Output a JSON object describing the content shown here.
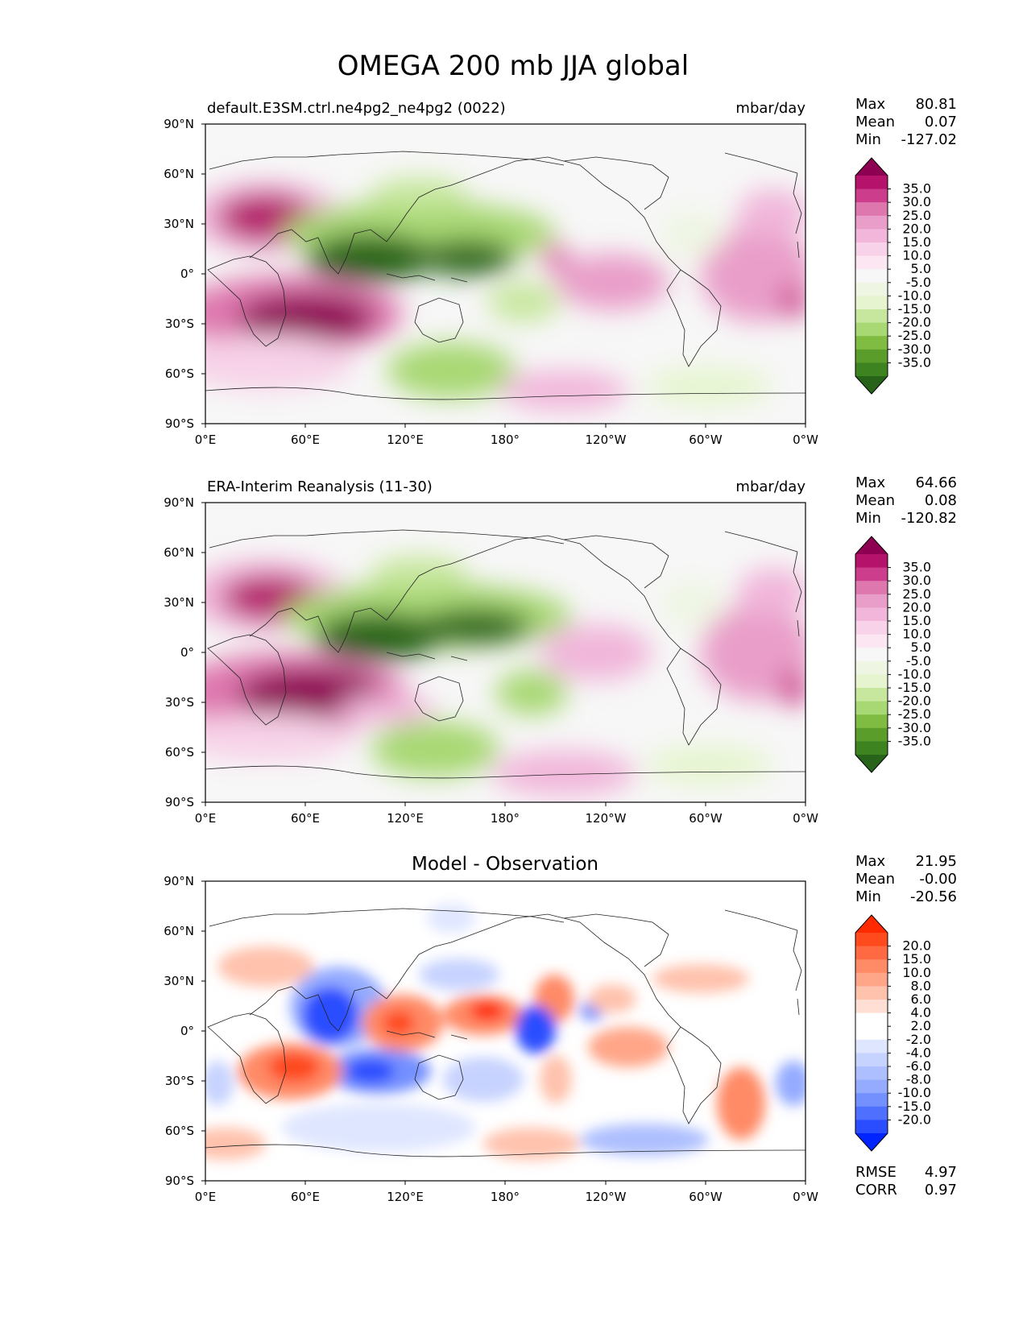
{
  "figure": {
    "title": "OMEGA 200 mb JJA global",
    "lat_ticks": [
      "90°N",
      "60°N",
      "30°N",
      "0°",
      "30°S",
      "60°S",
      "90°S"
    ],
    "lon_ticks": [
      "0°E",
      "60°E",
      "120°E",
      "180°",
      "120°W",
      "60°W",
      "0°W"
    ]
  },
  "panels": [
    {
      "id": "model",
      "left_label": "default.E3SM.ctrl.ne4pg2_ne4pg2 (0022)",
      "right_label": "mbar/day",
      "center_title": "",
      "stats": [
        {
          "label": "Max",
          "value": "80.81"
        },
        {
          "label": "Mean",
          "value": "0.07"
        },
        {
          "label": "Min",
          "value": "-127.02"
        }
      ],
      "colorbar": {
        "labels": [
          "35.0",
          "30.0",
          "25.0",
          "20.0",
          "15.0",
          "10.0",
          "5.0",
          "-5.0",
          "-10.0",
          "-15.0",
          "-20.0",
          "-25.0",
          "-30.0",
          "-35.0"
        ],
        "colors": [
          "#8e0152",
          "#b4126b",
          "#cc3d8c",
          "#de77ae",
          "#e99ec9",
          "#f1b6da",
          "#f7d2e8",
          "#fbe6f1",
          "#f7f7f7",
          "#eef6e3",
          "#e6f5d0",
          "#c7e79e",
          "#a8d873",
          "#7fbc41",
          "#5a9d2a",
          "#3d8420",
          "#276419"
        ]
      },
      "extra_stats": []
    },
    {
      "id": "obs",
      "left_label": "ERA-Interim Reanalysis (11-30)",
      "right_label": "mbar/day",
      "center_title": "",
      "stats": [
        {
          "label": "Max",
          "value": "64.66"
        },
        {
          "label": "Mean",
          "value": "0.08"
        },
        {
          "label": "Min",
          "value": "-120.82"
        }
      ],
      "colorbar": {
        "labels": [
          "35.0",
          "30.0",
          "25.0",
          "20.0",
          "15.0",
          "10.0",
          "5.0",
          "-5.0",
          "-10.0",
          "-15.0",
          "-20.0",
          "-25.0",
          "-30.0",
          "-35.0"
        ],
        "colors": [
          "#8e0152",
          "#b4126b",
          "#cc3d8c",
          "#de77ae",
          "#e99ec9",
          "#f1b6da",
          "#f7d2e8",
          "#fbe6f1",
          "#f7f7f7",
          "#eef6e3",
          "#e6f5d0",
          "#c7e79e",
          "#a8d873",
          "#7fbc41",
          "#5a9d2a",
          "#3d8420",
          "#276419"
        ]
      },
      "extra_stats": []
    },
    {
      "id": "diff",
      "left_label": "",
      "right_label": "",
      "center_title": "Model - Observation",
      "stats": [
        {
          "label": "Max",
          "value": "21.95"
        },
        {
          "label": "Mean",
          "value": "-0.00"
        },
        {
          "label": "Min",
          "value": "-20.56"
        }
      ],
      "colorbar": {
        "labels": [
          "20.0",
          "15.0",
          "10.0",
          "8.0",
          "6.0",
          "4.0",
          "2.0",
          "-2.0",
          "-4.0",
          "-6.0",
          "-8.0",
          "-10.0",
          "-15.0",
          "-20.0"
        ],
        "colors": [
          "#ff2a00",
          "#ff4a1e",
          "#ff6a42",
          "#ff8a66",
          "#ffa688",
          "#ffc2ad",
          "#ffdfd3",
          "#ffffff",
          "#ffffff",
          "#dfe6ff",
          "#c7d3ff",
          "#aebfff",
          "#94abff",
          "#7490ff",
          "#4f70ff",
          "#2a4dff",
          "#0024ff"
        ]
      },
      "extra_stats": [
        {
          "label": "RMSE",
          "value": "4.97"
        },
        {
          "label": "CORR",
          "value": "0.97"
        }
      ]
    }
  ]
}
